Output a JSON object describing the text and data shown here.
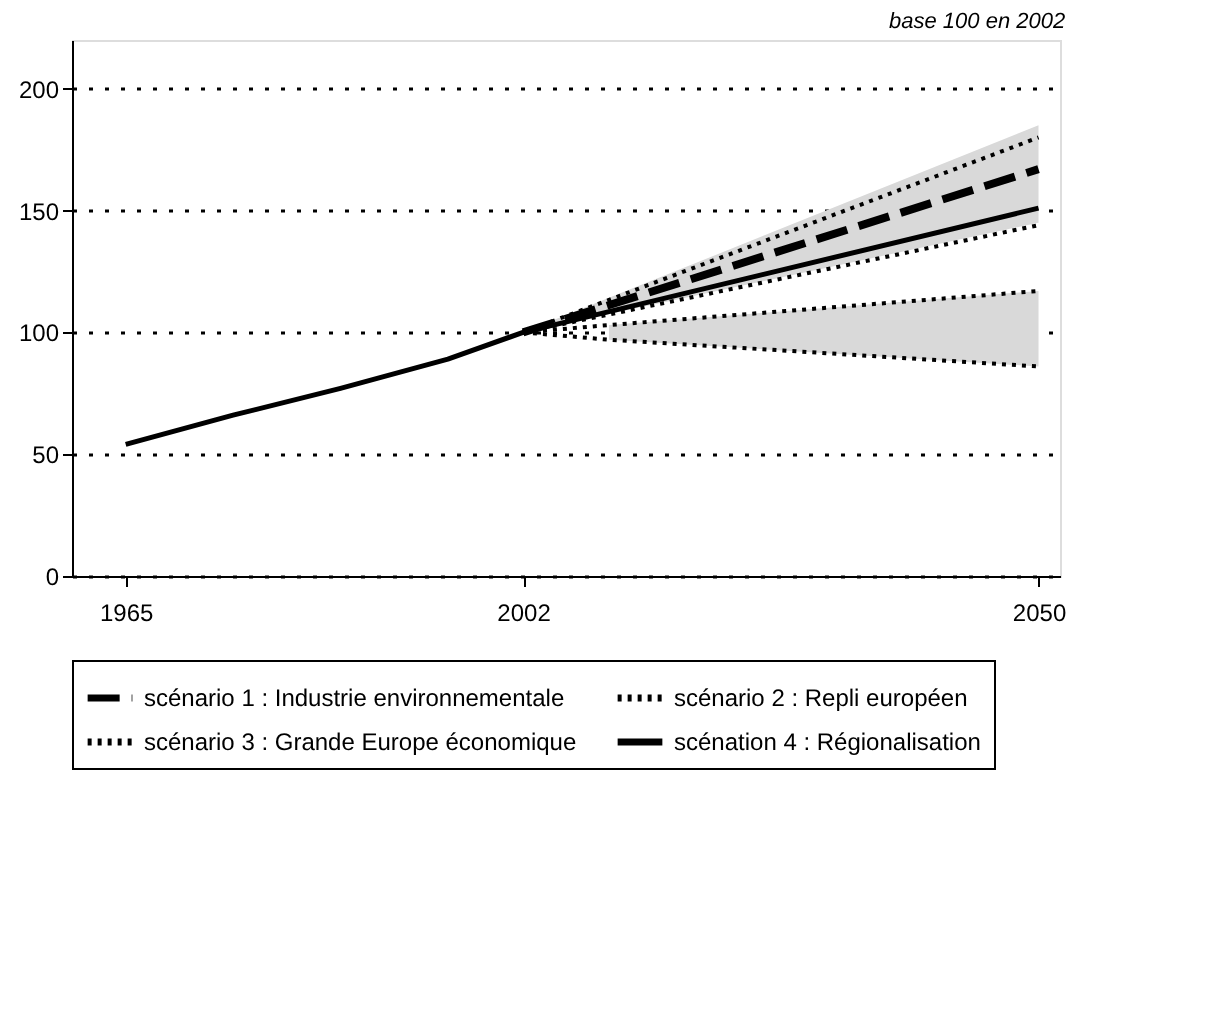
{
  "chart_data": {
    "type": "line",
    "subtitle": "base 100 en 2002",
    "xlim": [
      1960,
      2052
    ],
    "xticks": [
      1965,
      2002,
      2050
    ],
    "ylim": [
      0,
      220
    ],
    "yticks": [
      0,
      50,
      100,
      150,
      200
    ],
    "grid": "y",
    "legend": "bottom",
    "series": [
      {
        "name": "scénario 1 : Industrie environnementale",
        "x": [
          2002,
          2050
        ],
        "values": [
          100,
          167
        ],
        "lower": [
          100,
          145
        ],
        "upper": [
          100,
          185
        ],
        "color": "#000000",
        "line_style": "dashed"
      },
      {
        "name": "scénario 2 : Repli européen",
        "x": [
          2002,
          2010,
          2050
        ],
        "values": [
          100,
          103,
          117
        ],
        "lower": [
          null,
          97,
          86
        ],
        "upper": [
          null,
          103,
          117
        ],
        "color": "#000000",
        "line_style": "dotted"
      },
      {
        "x": [
          2002,
          2010,
          2050
        ],
        "values": [
          100,
          97,
          86
        ],
        "color": "#000000",
        "line_style": "dotted"
      },
      {
        "name": "scénario 3 : Grande Europe économique",
        "x": [
          2002,
          2050
        ],
        "values": [
          100,
          180
        ],
        "color": "#000000",
        "line_style": "dotted"
      },
      {
        "x": [
          2002,
          2050
        ],
        "values": [
          100,
          144
        ],
        "color": "#000000",
        "line_style": "dotted"
      },
      {
        "name": "scénation 4 : Régionalisation",
        "x": [
          1965,
          1975,
          1985,
          1995,
          2002,
          2050
        ],
        "values": [
          54,
          66,
          77,
          89,
          100,
          151
        ],
        "color": "#000000",
        "line_style": "solid"
      }
    ]
  }
}
